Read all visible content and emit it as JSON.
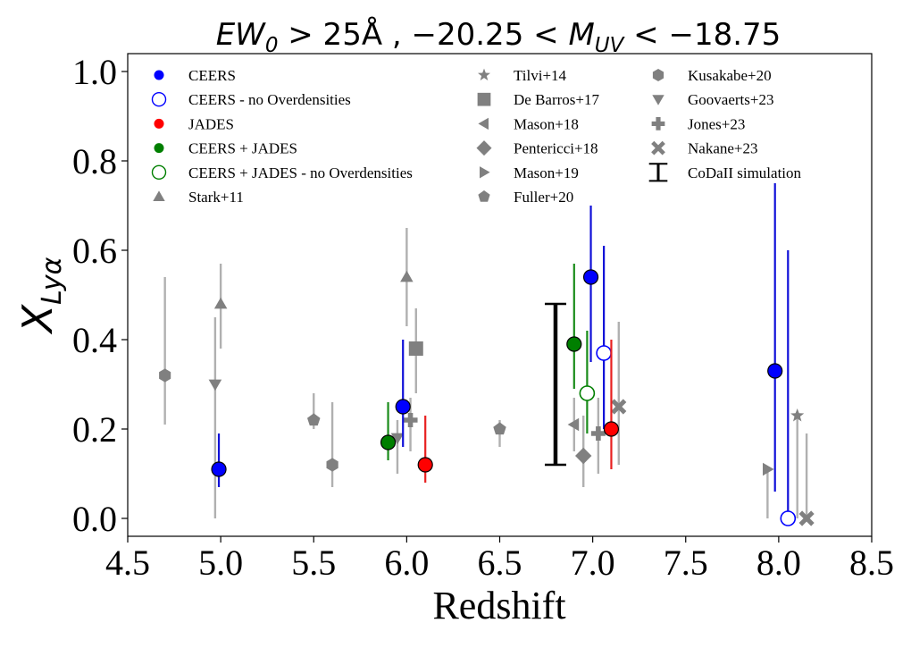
{
  "chart_data": {
    "type": "scatter",
    "title": "EW_0 > 25Å , −20.25 < M_UV < −18.75",
    "title_parts": {
      "ew": "EW",
      "ew_sub": "0",
      "mid": " > 25Å , −20.25 < ",
      "m": "M",
      "m_sub": "UV",
      "end": " < −18.75"
    },
    "xlabel": "Redshift",
    "ylabel": "X_Lyα",
    "ylabel_parts": {
      "x": "X",
      "sub": "Lyα"
    },
    "xlim": [
      4.5,
      8.5
    ],
    "ylim": [
      -0.04,
      1.04
    ],
    "xticks": [
      4.5,
      5.0,
      5.5,
      6.0,
      6.5,
      7.0,
      7.5,
      8.0,
      8.5
    ],
    "xtick_labels": [
      "4.5",
      "5.0",
      "5.5",
      "6.0",
      "6.5",
      "7.0",
      "7.5",
      "8.0",
      "8.5"
    ],
    "yticks": [
      0.0,
      0.2,
      0.4,
      0.6,
      0.8,
      1.0
    ],
    "ytick_labels": [
      "0.0",
      "0.2",
      "0.4",
      "0.6",
      "0.8",
      "1.0"
    ],
    "legend_placement": "top",
    "colors": {
      "blue": "#0000ff",
      "blue_bar": "#1010d8",
      "red": "#ff0000",
      "red_bar": "#e82020",
      "green": "#007f00",
      "green_bar": "#1a8c1a",
      "gray": "#808080",
      "gray_bar": "#b0b0b0",
      "black": "#000000"
    },
    "series": [
      {
        "name": "CEERS",
        "marker": "circle",
        "color": "blue",
        "filled": true,
        "points": [
          {
            "x": 4.99,
            "y": 0.11,
            "ylo": 0.07,
            "yhi": 0.19
          },
          {
            "x": 5.98,
            "y": 0.25,
            "ylo": 0.16,
            "yhi": 0.4
          },
          {
            "x": 6.99,
            "y": 0.54,
            "ylo": 0.35,
            "yhi": 0.7
          },
          {
            "x": 7.98,
            "y": 0.33,
            "ylo": 0.06,
            "yhi": 0.75
          }
        ]
      },
      {
        "name": "CEERS - no Overdensities",
        "marker": "circle",
        "color": "blue",
        "filled": false,
        "points": [
          {
            "x": 7.06,
            "y": 0.37,
            "ylo": 0.2,
            "yhi": 0.61
          },
          {
            "x": 8.05,
            "y": 0.0,
            "ylo": 0.0,
            "yhi": 0.6
          }
        ]
      },
      {
        "name": "JADES",
        "marker": "circle",
        "color": "red",
        "filled": true,
        "points": [
          {
            "x": 6.1,
            "y": 0.12,
            "ylo": 0.08,
            "yhi": 0.23
          },
          {
            "x": 7.1,
            "y": 0.2,
            "ylo": 0.11,
            "yhi": 0.4
          }
        ]
      },
      {
        "name": "CEERS + JADES",
        "marker": "circle",
        "color": "green",
        "filled": true,
        "points": [
          {
            "x": 5.9,
            "y": 0.17,
            "ylo": 0.13,
            "yhi": 0.26
          },
          {
            "x": 6.9,
            "y": 0.39,
            "ylo": 0.29,
            "yhi": 0.57
          }
        ]
      },
      {
        "name": "CEERS + JADES - no Overdensities",
        "marker": "circle",
        "color": "green",
        "filled": false,
        "points": [
          {
            "x": 6.97,
            "y": 0.28,
            "ylo": 0.19,
            "yhi": 0.42
          }
        ]
      },
      {
        "name": "Stark+11",
        "marker": "triangle-up",
        "color": "gray",
        "filled": true,
        "points": [
          {
            "x": 5.0,
            "y": 0.48,
            "ylo": 0.38,
            "yhi": 0.57
          },
          {
            "x": 6.0,
            "y": 0.54,
            "ylo": 0.43,
            "yhi": 0.65
          }
        ]
      },
      {
        "name": "Tilvi+14",
        "marker": "star",
        "color": "gray",
        "filled": true,
        "points": [
          {
            "x": 8.1,
            "y": 0.23,
            "ylo": 0.0,
            "yhi": 0.23
          }
        ]
      },
      {
        "name": "De Barros+17",
        "marker": "square",
        "color": "gray",
        "filled": true,
        "points": [
          {
            "x": 6.05,
            "y": 0.38,
            "ylo": 0.28,
            "yhi": 0.47
          }
        ]
      },
      {
        "name": "Mason+18",
        "marker": "triangle-left",
        "color": "gray",
        "filled": true,
        "points": [
          {
            "x": 6.9,
            "y": 0.21,
            "ylo": 0.15,
            "yhi": 0.27
          }
        ]
      },
      {
        "name": "Pentericci+18",
        "marker": "diamond",
        "color": "gray",
        "filled": true,
        "points": [
          {
            "x": 6.95,
            "y": 0.14,
            "ylo": 0.07,
            "yhi": 0.23
          }
        ]
      },
      {
        "name": "Mason+19",
        "marker": "triangle-right",
        "color": "gray",
        "filled": true,
        "points": [
          {
            "x": 7.94,
            "y": 0.11,
            "ylo": 0.0,
            "yhi": 0.11
          }
        ]
      },
      {
        "name": "Fuller+20",
        "marker": "pentagon",
        "color": "gray",
        "filled": true,
        "points": [
          {
            "x": 5.5,
            "y": 0.22,
            "ylo": 0.2,
            "yhi": 0.28
          },
          {
            "x": 6.5,
            "y": 0.2,
            "ylo": 0.16,
            "yhi": 0.22
          }
        ]
      },
      {
        "name": "Kusakabe+20",
        "marker": "hexagon",
        "color": "gray",
        "filled": true,
        "points": [
          {
            "x": 4.7,
            "y": 0.32,
            "ylo": 0.21,
            "yhi": 0.54
          },
          {
            "x": 5.6,
            "y": 0.12,
            "ylo": 0.07,
            "yhi": 0.26
          }
        ]
      },
      {
        "name": "Goovaerts+23",
        "marker": "triangle-down",
        "color": "gray",
        "filled": true,
        "points": [
          {
            "x": 4.97,
            "y": 0.3,
            "ylo": 0.0,
            "yhi": 0.45
          },
          {
            "x": 5.95,
            "y": 0.18,
            "ylo": 0.1,
            "yhi": 0.22
          }
        ]
      },
      {
        "name": "Jones+23",
        "marker": "plus",
        "color": "gray",
        "filled": true,
        "points": [
          {
            "x": 6.02,
            "y": 0.22,
            "ylo": 0.15,
            "yhi": 0.27
          },
          {
            "x": 7.03,
            "y": 0.19,
            "ylo": 0.1,
            "yhi": 0.27
          }
        ]
      },
      {
        "name": "Nakane+23",
        "marker": "x",
        "color": "gray",
        "filled": true,
        "points": [
          {
            "x": 7.14,
            "y": 0.25,
            "ylo": 0.12,
            "yhi": 0.44
          },
          {
            "x": 8.15,
            "y": 0.0,
            "ylo": 0.0,
            "yhi": 0.19
          }
        ]
      },
      {
        "name": "CoDaII simulation",
        "marker": "errorbar",
        "color": "black",
        "filled": true,
        "points": [
          {
            "x": 6.8,
            "y": 0.3,
            "ylo": 0.12,
            "yhi": 0.48
          }
        ]
      }
    ],
    "legend_columns": [
      [
        "CEERS",
        "CEERS - no Overdensities",
        "JADES",
        "CEERS + JADES",
        "CEERS + JADES - no Overdensities",
        "Stark+11"
      ],
      [
        "Tilvi+14",
        "De Barros+17",
        "Mason+18",
        "Pentericci+18",
        "Mason+19",
        "Fuller+20"
      ],
      [
        "Kusakabe+20",
        "Goovaerts+23",
        "Jones+23",
        "Nakane+23",
        "CoDaII simulation"
      ]
    ]
  }
}
